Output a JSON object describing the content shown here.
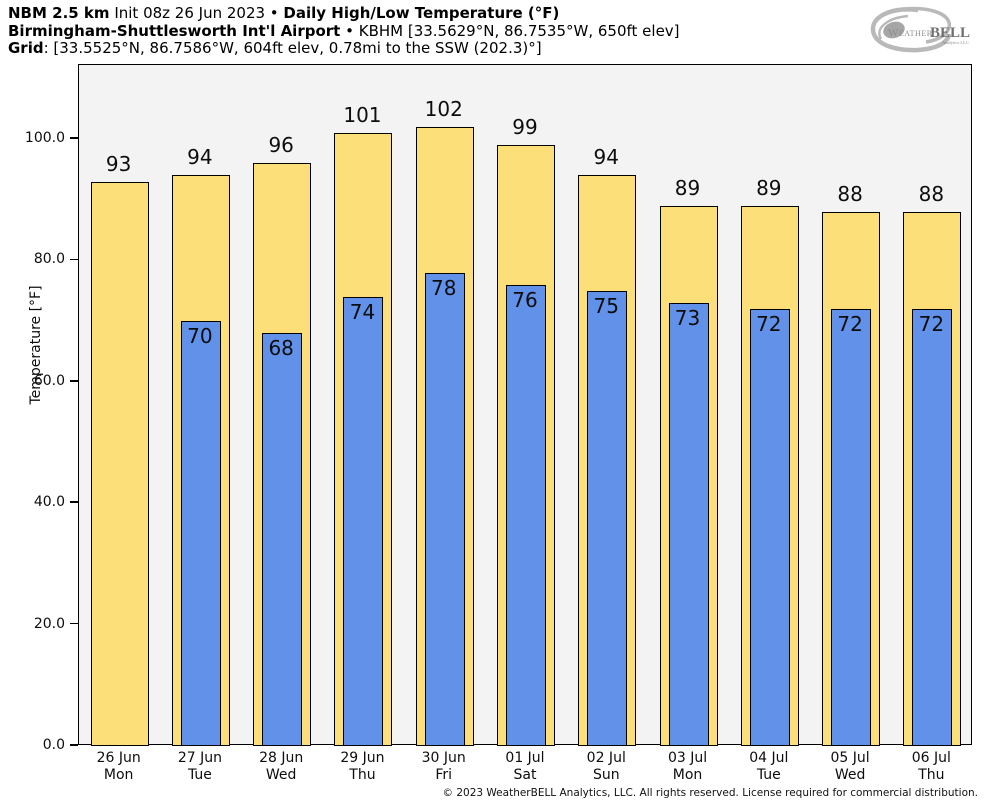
{
  "header": {
    "line1": {
      "bold1": "NBM 2.5 km",
      "regular1": " Init 08z 26 Jun 2023 • ",
      "bold2": "Daily High/Low Temperature (°F)"
    },
    "line2": {
      "bold1": "Birmingham-Shuttlesworth Int'l Airport",
      "regular1": " • KBHM [33.5629°N, 86.7535°W, 650ft elev]"
    },
    "line3": {
      "bold1": "Grid",
      "regular1": ": [33.5525°N, 86.7586°W, 604ft elev, 0.78mi to the SSW (202.3)°]"
    }
  },
  "logo": {
    "part1": "Weather",
    "part2": "BELL",
    "sub": "Analytics LLC"
  },
  "footer": {
    "copyright": "© 2023 WeatherBELL Analytics, LLC. All rights reserved. License required for commercial distribution."
  },
  "chart_data": {
    "type": "bar",
    "title": "NBM 2.5 km Init 08z 26 Jun 2023 • Daily High/Low Temperature (°F)",
    "subtitle": "Birmingham-Shuttlesworth Int'l Airport • KBHM",
    "ylabel": "Temperature [°F]",
    "ylim": [
      0,
      112.2
    ],
    "grid": false,
    "legend": "none",
    "plot_bg": "#F3F3F3",
    "yticks": [
      {
        "value": 0,
        "label": "0.0"
      },
      {
        "value": 20,
        "label": "20.0"
      },
      {
        "value": 40,
        "label": "40.0"
      },
      {
        "value": 60,
        "label": "60.0"
      },
      {
        "value": 80,
        "label": "80.0"
      },
      {
        "value": 100,
        "label": "100.0"
      }
    ],
    "categories": [
      {
        "date": "26 Jun",
        "day": "Mon"
      },
      {
        "date": "27 Jun",
        "day": "Tue"
      },
      {
        "date": "28 Jun",
        "day": "Wed"
      },
      {
        "date": "29 Jun",
        "day": "Thu"
      },
      {
        "date": "30 Jun",
        "day": "Fri"
      },
      {
        "date": "01 Jul",
        "day": "Sat"
      },
      {
        "date": "02 Jul",
        "day": "Sun"
      },
      {
        "date": "03 Jul",
        "day": "Mon"
      },
      {
        "date": "04 Jul",
        "day": "Tue"
      },
      {
        "date": "05 Jul",
        "day": "Wed"
      },
      {
        "date": "06 Jul",
        "day": "Thu"
      }
    ],
    "series": [
      {
        "name": "High",
        "color": "#FDDF7A",
        "values": [
          93,
          94,
          96,
          101,
          102,
          99,
          94,
          89,
          89,
          88,
          88
        ]
      },
      {
        "name": "Low",
        "color": "#6191E8",
        "values": [
          null,
          70,
          68,
          74,
          78,
          76,
          75,
          73,
          72,
          72,
          72
        ]
      }
    ]
  }
}
